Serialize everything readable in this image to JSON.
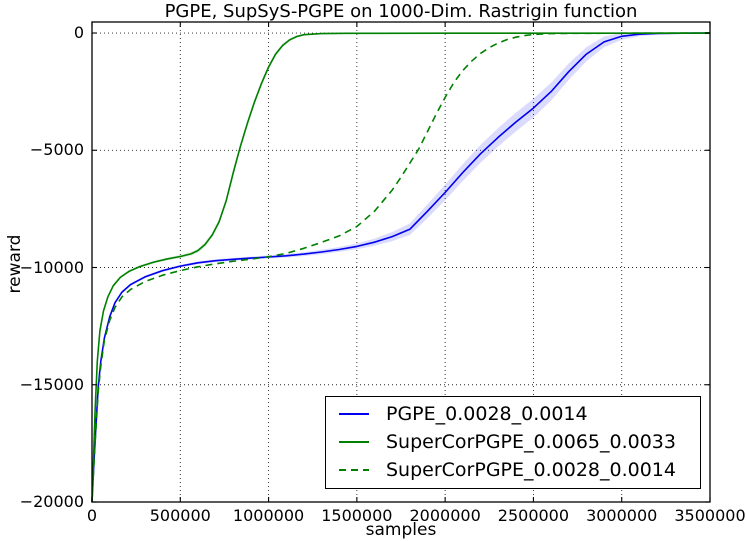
{
  "figure": {
    "title": "PGPE, SupSyS-PGPE on 1000-Dim. Rastrigin function",
    "xlabel": "samples",
    "ylabel": "reward"
  },
  "legend": {
    "entries": [
      {
        "label": "PGPE_0.0028_0.0014",
        "color": "#0000ee",
        "style": "solid"
      },
      {
        "label": "SuperCorPGPE_0.0065_0.0033",
        "color": "#008000",
        "style": "solid"
      },
      {
        "label": "SuperCorPGPE_0.0028_0.0014",
        "color": "#008000",
        "style": "dashed"
      }
    ]
  },
  "chart_data": {
    "type": "line",
    "title": "PGPE, SupSyS-PGPE on 1000-Dim. Rastrigin function",
    "xlabel": "samples",
    "ylabel": "reward",
    "xlim": [
      0,
      3500000
    ],
    "ylim": [
      -20000,
      470
    ],
    "grid": true,
    "grid_style": "dotted",
    "legend_position": "lower right",
    "xticks": [
      0,
      500000,
      1000000,
      1500000,
      2000000,
      2500000,
      3000000,
      3500000
    ],
    "xtick_labels": [
      "0",
      "500000",
      "1000000",
      "1500000",
      "2000000",
      "2500000",
      "3000000",
      "3500000"
    ],
    "yticks": [
      0,
      -5000,
      -10000,
      -15000,
      -20000
    ],
    "ytick_labels": [
      "0",
      "−5000",
      "−10000",
      "−15000",
      "−20000"
    ],
    "series": [
      {
        "name": "PGPE_0.0028_0.0014",
        "color": "#0000ee",
        "dash": null,
        "band_color": "rgba(0,0,238,0.14)",
        "points": [
          [
            0,
            -20000
          ],
          [
            10000,
            -18400
          ],
          [
            20000,
            -17100
          ],
          [
            35000,
            -15100
          ],
          [
            50000,
            -14000
          ],
          [
            70000,
            -13000
          ],
          [
            100000,
            -12100
          ],
          [
            130000,
            -11500
          ],
          [
            170000,
            -11050
          ],
          [
            220000,
            -10720
          ],
          [
            300000,
            -10400
          ],
          [
            400000,
            -10130
          ],
          [
            500000,
            -9940
          ],
          [
            600000,
            -9800
          ],
          [
            700000,
            -9710
          ],
          [
            800000,
            -9650
          ],
          [
            900000,
            -9600
          ],
          [
            1000000,
            -9550
          ],
          [
            1100000,
            -9500
          ],
          [
            1200000,
            -9430
          ],
          [
            1300000,
            -9340
          ],
          [
            1400000,
            -9230
          ],
          [
            1500000,
            -9100
          ],
          [
            1600000,
            -8920
          ],
          [
            1700000,
            -8680
          ],
          [
            1800000,
            -8370
          ],
          [
            1900000,
            -7600
          ],
          [
            2000000,
            -6800
          ],
          [
            2100000,
            -5950
          ],
          [
            2200000,
            -5150
          ],
          [
            2300000,
            -4450
          ],
          [
            2400000,
            -3800
          ],
          [
            2500000,
            -3200
          ],
          [
            2600000,
            -2500
          ],
          [
            2700000,
            -1650
          ],
          [
            2800000,
            -900
          ],
          [
            2900000,
            -380
          ],
          [
            3000000,
            -140
          ],
          [
            3100000,
            -50
          ],
          [
            3200000,
            -18
          ],
          [
            3350000,
            -8
          ],
          [
            3500000,
            -4
          ]
        ],
        "band_delta": [
          50,
          50,
          50,
          55,
          55,
          60,
          60,
          60,
          60,
          60,
          60,
          60,
          60,
          60,
          60,
          60,
          65,
          70,
          75,
          85,
          95,
          105,
          125,
          155,
          195,
          245,
          295,
          330,
          360,
          380,
          395,
          400,
          400,
          380,
          350,
          300,
          230,
          150,
          90,
          55,
          30,
          20
        ]
      },
      {
        "name": "SuperCorPGPE_0.0065_0.0033",
        "color": "#008000",
        "dash": null,
        "band_color": "rgba(0,128,0,0.13)",
        "points": [
          [
            0,
            -20000
          ],
          [
            8000,
            -18300
          ],
          [
            18000,
            -16000
          ],
          [
            30000,
            -14000
          ],
          [
            45000,
            -12700
          ],
          [
            65000,
            -11850
          ],
          [
            90000,
            -11250
          ],
          [
            120000,
            -10780
          ],
          [
            160000,
            -10420
          ],
          [
            210000,
            -10160
          ],
          [
            270000,
            -9960
          ],
          [
            350000,
            -9770
          ],
          [
            430000,
            -9630
          ],
          [
            500000,
            -9530
          ],
          [
            560000,
            -9420
          ],
          [
            600000,
            -9280
          ],
          [
            640000,
            -9020
          ],
          [
            680000,
            -8620
          ],
          [
            720000,
            -8050
          ],
          [
            760000,
            -7150
          ],
          [
            800000,
            -5950
          ],
          [
            840000,
            -4850
          ],
          [
            880000,
            -3850
          ],
          [
            920000,
            -2950
          ],
          [
            960000,
            -2150
          ],
          [
            1000000,
            -1450
          ],
          [
            1040000,
            -900
          ],
          [
            1080000,
            -530
          ],
          [
            1120000,
            -290
          ],
          [
            1160000,
            -150
          ],
          [
            1200000,
            -70
          ],
          [
            1300000,
            -25
          ],
          [
            1450000,
            -10
          ],
          [
            2000000,
            -8
          ],
          [
            2750000,
            -6
          ],
          [
            3500000,
            -5
          ]
        ],
        "band_delta": [
          60,
          60,
          60,
          60,
          60,
          60,
          60,
          60,
          60,
          60,
          60,
          60,
          60,
          70,
          80,
          90,
          100,
          110,
          120,
          130,
          140,
          140,
          140,
          130,
          120,
          110,
          100,
          80,
          60,
          50,
          40,
          30,
          25,
          25,
          25,
          25
        ]
      },
      {
        "name": "SuperCorPGPE_0.0028_0.0014",
        "color": "#008000",
        "dash": "7 5",
        "band_color": null,
        "points": [
          [
            0,
            -20000
          ],
          [
            10000,
            -18500
          ],
          [
            20000,
            -17200
          ],
          [
            35000,
            -15300
          ],
          [
            50000,
            -14200
          ],
          [
            70000,
            -13100
          ],
          [
            100000,
            -12250
          ],
          [
            130000,
            -11700
          ],
          [
            170000,
            -11250
          ],
          [
            220000,
            -10930
          ],
          [
            300000,
            -10600
          ],
          [
            400000,
            -10330
          ],
          [
            500000,
            -10130
          ],
          [
            600000,
            -9970
          ],
          [
            700000,
            -9840
          ],
          [
            800000,
            -9730
          ],
          [
            900000,
            -9640
          ],
          [
            1000000,
            -9540
          ],
          [
            1100000,
            -9400
          ],
          [
            1200000,
            -9180
          ],
          [
            1300000,
            -8930
          ],
          [
            1400000,
            -8650
          ],
          [
            1500000,
            -8250
          ],
          [
            1600000,
            -7600
          ],
          [
            1700000,
            -6700
          ],
          [
            1750000,
            -6150
          ],
          [
            1800000,
            -5550
          ],
          [
            1850000,
            -4950
          ],
          [
            1900000,
            -4200
          ],
          [
            1950000,
            -3450
          ],
          [
            2000000,
            -2750
          ],
          [
            2050000,
            -2100
          ],
          [
            2100000,
            -1600
          ],
          [
            2150000,
            -1200
          ],
          [
            2200000,
            -870
          ],
          [
            2250000,
            -620
          ],
          [
            2300000,
            -430
          ],
          [
            2350000,
            -280
          ],
          [
            2400000,
            -180
          ],
          [
            2450000,
            -110
          ],
          [
            2500000,
            -65
          ],
          [
            2600000,
            -25
          ],
          [
            2750000,
            -10
          ],
          [
            3500000,
            -5
          ]
        ],
        "band_delta": null
      }
    ]
  }
}
